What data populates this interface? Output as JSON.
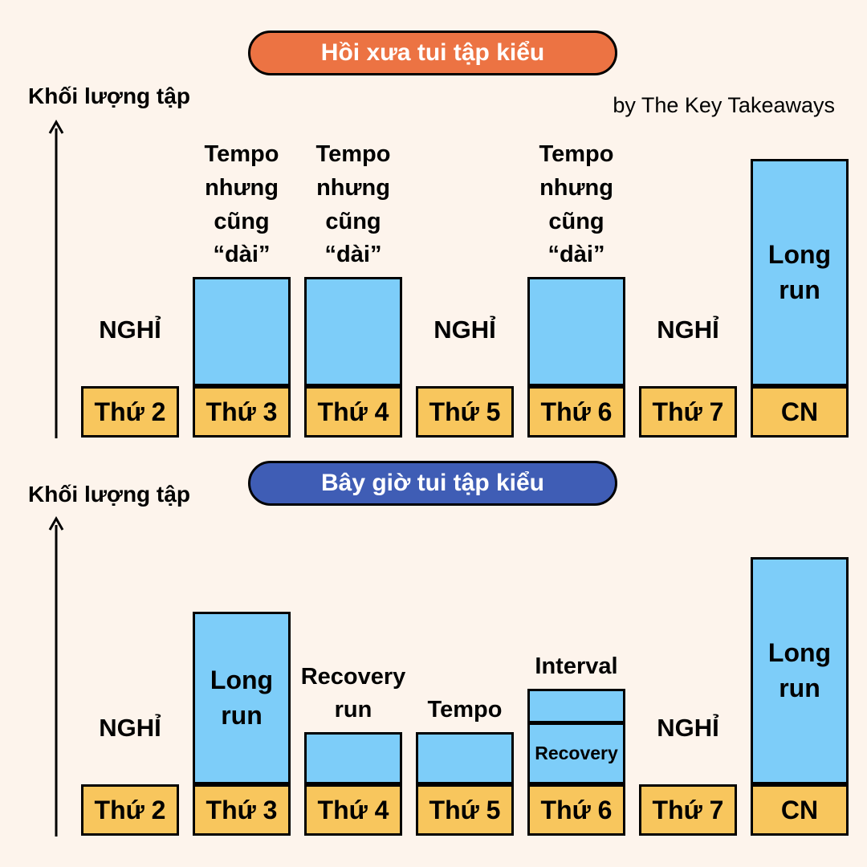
{
  "credit": "by The Key Takeaways",
  "colors": {
    "background": "#fdf4ec",
    "then_pill": "#ec7343",
    "now_pill": "#3f5db5",
    "bar": "#7dcdf9",
    "day": "#f8c65d"
  },
  "chart_data": [
    {
      "type": "bar",
      "title": "Hồi xưa tui tập kiểu",
      "ylabel": "Khối lượng tập",
      "categories": [
        "Thứ 2",
        "Thứ 3",
        "Thứ 4",
        "Thứ 5",
        "Thứ 6",
        "Thứ 7",
        "CN"
      ],
      "values": [
        0,
        0.48,
        0.48,
        0,
        0.48,
        0,
        1.0
      ],
      "labels": [
        {
          "text": "NGHỈ",
          "place": "rest"
        },
        {
          "text": "Tempo\nnhưng\ncũng\n“dài”",
          "place": "above"
        },
        {
          "text": "Tempo\nnhưng\ncũng\n“dài”",
          "place": "above"
        },
        {
          "text": "NGHỈ",
          "place": "rest"
        },
        {
          "text": "Tempo\nnhưng\ncũng\n“dài”",
          "place": "above"
        },
        {
          "text": "NGHỈ",
          "place": "rest"
        },
        {
          "text": "Long\nrun",
          "place": "inside"
        }
      ]
    },
    {
      "type": "bar",
      "title": "Bây giờ tui tập kiểu",
      "ylabel": "Khối lượng tập",
      "categories": [
        "Thứ 2",
        "Thứ 3",
        "Thứ 4",
        "Thứ 5",
        "Thứ 6",
        "Thứ 7",
        "CN"
      ],
      "values": [
        0,
        0.76,
        0.23,
        0.23,
        0.42,
        0,
        1.0
      ],
      "stack": [
        null,
        null,
        null,
        null,
        [
          0.26,
          0.16
        ],
        null,
        null
      ],
      "labels": [
        {
          "text": "NGHỈ",
          "place": "rest"
        },
        {
          "text": "Long\nrun",
          "place": "inside"
        },
        {
          "text": "Recovery\nrun",
          "place": "above"
        },
        {
          "text": "Tempo",
          "place": "above"
        },
        {
          "text": "Interval",
          "place": "above",
          "inside": "Recovery"
        },
        {
          "text": "NGHỈ",
          "place": "rest"
        },
        {
          "text": "Long\nrun",
          "place": "inside"
        }
      ]
    }
  ]
}
